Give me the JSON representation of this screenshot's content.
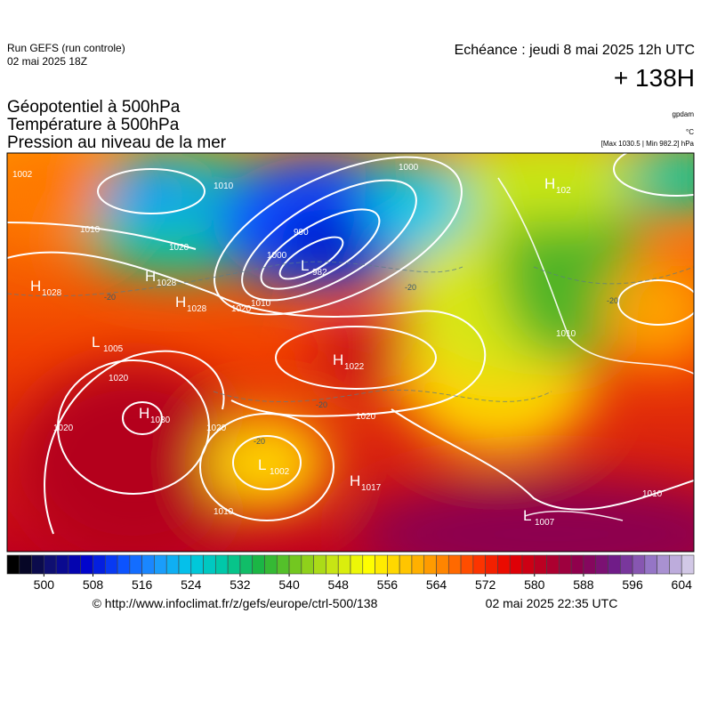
{
  "header": {
    "run": "Run GEFS (run controle)",
    "run_date": "02 mai 2025 18Z",
    "valid": "Echéance : jeudi 8 mai 2025 12h UTC",
    "lead": "+ 138H"
  },
  "titles": [
    "Géopotentiel à 500hPa",
    "Température à 500hPa",
    "Pression au niveau de la mer"
  ],
  "units": [
    "gpdam",
    "°C",
    "[Max 1030.5 | Min 982.2] hPa"
  ],
  "centers": [
    {
      "letter": "H",
      "pressure": 1028
    },
    {
      "letter": "H",
      "pressure": 1028
    },
    {
      "letter": "H",
      "pressure": 1028
    },
    {
      "letter": "L",
      "pressure": 982
    },
    {
      "letter": "L",
      "pressure": 1005
    },
    {
      "letter": "H",
      "pressure": 1022
    },
    {
      "letter": "H",
      "pressure": 1030
    },
    {
      "letter": "L",
      "pressure": 1002
    },
    {
      "letter": "H",
      "pressure": 1017
    },
    {
      "letter": "L",
      "pressure": 1007
    },
    {
      "letter": "H",
      "pressure": 102
    }
  ],
  "isobar_labels": [
    1002,
    1010,
    1020,
    1010,
    1000,
    990,
    1000,
    1010,
    1020,
    1020,
    1020,
    1020,
    1010,
    1020,
    1010,
    1010
  ],
  "temperature_labels": [
    -20,
    -20,
    -20,
    -20,
    -20
  ],
  "colorbar": {
    "range": [
      494,
      606
    ],
    "ticks": [
      500,
      508,
      516,
      524,
      532,
      540,
      548,
      556,
      564,
      572,
      580,
      588,
      596,
      604
    ],
    "stops": [
      "#000000",
      "#10106e",
      "#0000c8",
      "#0a4bff",
      "#1e96ff",
      "#00c8e6",
      "#00c8a0",
      "#1eb43c",
      "#78c81e",
      "#c8e614",
      "#ffff00",
      "#ffc800",
      "#ff8c00",
      "#ff3c00",
      "#e60000",
      "#b40028",
      "#8c0050",
      "#6e1e8c",
      "#9678c8",
      "#d2c8e6"
    ]
  },
  "footer": {
    "source": "© http://www.infoclimat.fr/z/gefs/europe/ctrl-500/138",
    "generated": "02 mai 2025 22:35 UTC"
  }
}
